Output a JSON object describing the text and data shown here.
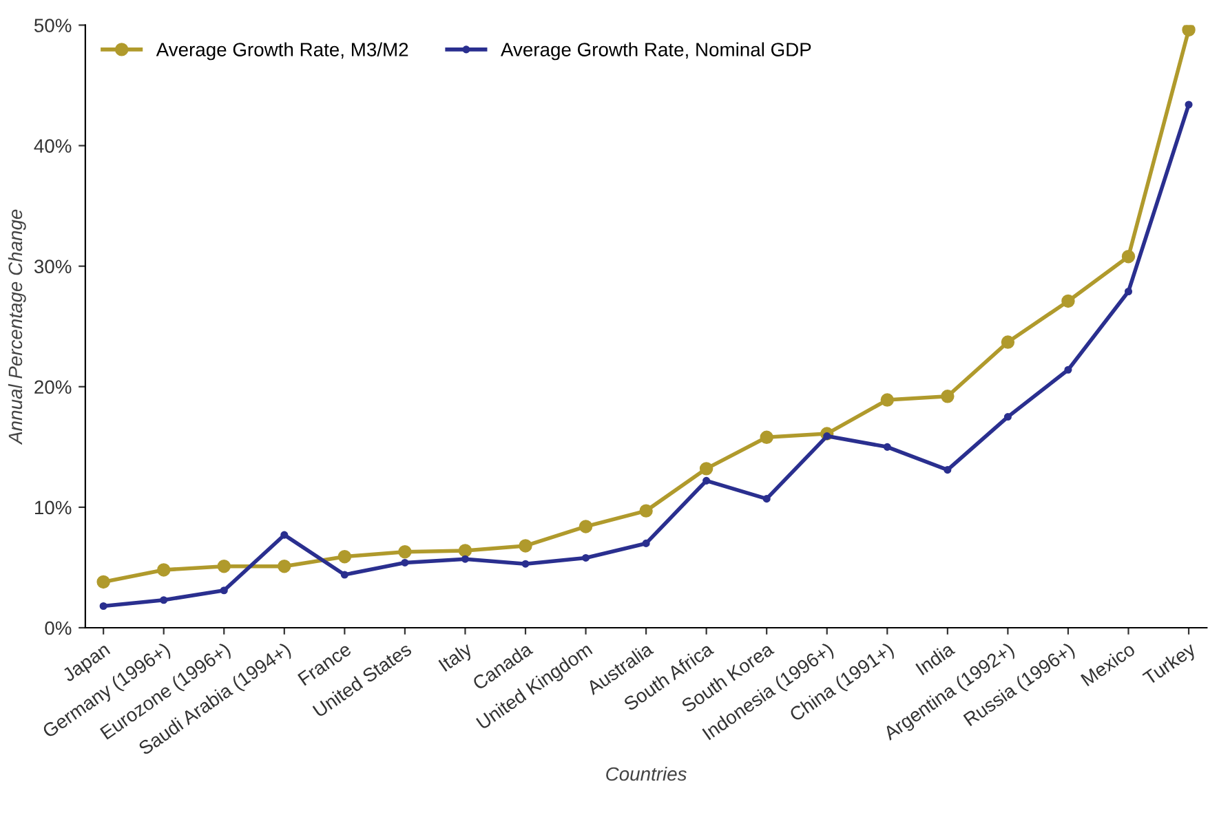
{
  "chart_data": {
    "type": "line",
    "xlabel": "Countries",
    "ylabel": "Annual Percentage Change",
    "categories": [
      "Japan",
      "Germany (1996+)",
      "Eurozone (1996+)",
      "Saudi Arabia (1994+)",
      "France",
      "United States",
      "Italy",
      "Canada",
      "United Kingdom",
      "Australia",
      "South Africa",
      "South Korea",
      "Indonesia (1996+)",
      "China (1991+)",
      "India",
      "Argentina (1992+)",
      "Russia (1996+)",
      "Mexico",
      "Turkey"
    ],
    "series": [
      {
        "name": "Average Growth Rate, M3/M2",
        "color": "#b09a2c",
        "values": [
          3.8,
          4.8,
          5.1,
          5.1,
          5.9,
          6.3,
          6.4,
          6.8,
          8.4,
          9.7,
          13.2,
          15.8,
          16.1,
          18.9,
          19.2,
          23.7,
          27.1,
          30.8,
          49.6
        ]
      },
      {
        "name": "Average Growth Rate, Nominal GDP",
        "color": "#2a2f8f",
        "values": [
          1.8,
          2.3,
          3.1,
          7.7,
          4.4,
          5.4,
          5.7,
          5.3,
          5.8,
          7.0,
          12.2,
          10.7,
          15.9,
          15.0,
          13.1,
          17.5,
          21.4,
          27.9,
          43.4
        ]
      }
    ],
    "ylim": [
      0,
      50
    ],
    "yticks": [
      {
        "value": 0,
        "label": "0%"
      },
      {
        "value": 10,
        "label": "10%"
      },
      {
        "value": 20,
        "label": "20%"
      },
      {
        "value": 30,
        "label": "30%"
      },
      {
        "value": 40,
        "label": "40%"
      },
      {
        "value": 50,
        "label": "50%"
      }
    ],
    "legend": "top left",
    "marker": "circle",
    "line_style": "solid",
    "grid": false
  }
}
